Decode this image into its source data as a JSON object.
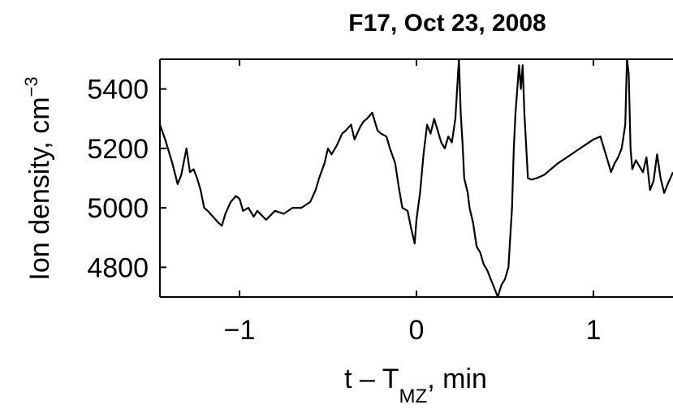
{
  "chart_data": {
    "type": "line",
    "title": "F17, Oct 23, 2008",
    "xlabel": {
      "main": "t – T",
      "subscript": "MZ",
      "suffix": ",  min"
    },
    "ylabel": {
      "main": "Ion density, cm",
      "superscript": "−3"
    },
    "xlim": [
      -1.45,
      1.45
    ],
    "ylim": [
      4700,
      5500
    ],
    "xticks": [
      {
        "value": -1,
        "label": "−1"
      },
      {
        "value": 0,
        "label": "0"
      },
      {
        "value": 1,
        "label": "1"
      }
    ],
    "yticks": [
      {
        "value": 4800,
        "label": "4800"
      },
      {
        "value": 5000,
        "label": "5000"
      },
      {
        "value": 5200,
        "label": "5200"
      },
      {
        "value": 5400,
        "label": "5400"
      }
    ],
    "grid": false,
    "series": [
      {
        "color": "#000000",
        "x": [
          -1.45,
          -1.42,
          -1.38,
          -1.35,
          -1.33,
          -1.3,
          -1.28,
          -1.26,
          -1.24,
          -1.22,
          -1.2,
          -1.18,
          -1.15,
          -1.12,
          -1.1,
          -1.08,
          -1.05,
          -1.02,
          -1.0,
          -0.98,
          -0.95,
          -0.92,
          -0.9,
          -0.85,
          -0.8,
          -0.75,
          -0.7,
          -0.65,
          -0.6,
          -0.57,
          -0.55,
          -0.52,
          -0.5,
          -0.48,
          -0.45,
          -0.42,
          -0.4,
          -0.37,
          -0.35,
          -0.32,
          -0.3,
          -0.28,
          -0.25,
          -0.22,
          -0.2,
          -0.17,
          -0.15,
          -0.12,
          -0.1,
          -0.08,
          -0.05,
          -0.03,
          -0.01,
          0.0,
          0.02,
          0.04,
          0.06,
          0.08,
          0.1,
          0.12,
          0.14,
          0.16,
          0.18,
          0.2,
          0.22,
          0.24,
          0.25,
          0.26,
          0.27,
          0.29,
          0.3,
          0.32,
          0.34,
          0.36,
          0.38,
          0.4,
          0.42,
          0.44,
          0.46,
          0.48,
          0.5,
          0.52,
          0.54,
          0.55,
          0.56,
          0.58,
          0.59,
          0.6,
          0.61,
          0.63,
          0.65,
          0.68,
          0.72,
          0.76,
          0.8,
          0.85,
          0.9,
          0.95,
          1.0,
          1.04,
          1.06,
          1.08,
          1.1,
          1.12,
          1.14,
          1.16,
          1.18,
          1.19,
          1.2,
          1.21,
          1.22,
          1.24,
          1.26,
          1.28,
          1.3,
          1.32,
          1.34,
          1.36,
          1.38,
          1.4,
          1.42,
          1.45
        ],
        "y": [
          5280,
          5230,
          5150,
          5080,
          5110,
          5200,
          5120,
          5130,
          5100,
          5060,
          5000,
          4990,
          4970,
          4950,
          4940,
          4980,
          5020,
          5040,
          5030,
          4990,
          5000,
          4970,
          4990,
          4960,
          4990,
          4980,
          5000,
          5000,
          5020,
          5060,
          5100,
          5150,
          5200,
          5180,
          5210,
          5250,
          5260,
          5280,
          5230,
          5270,
          5290,
          5300,
          5320,
          5260,
          5250,
          5240,
          5200,
          5150,
          5070,
          5000,
          4990,
          4930,
          4880,
          4960,
          5050,
          5180,
          5280,
          5250,
          5300,
          5260,
          5220,
          5200,
          5240,
          5220,
          5300,
          5500,
          5320,
          5220,
          5100,
          5050,
          5000,
          4950,
          4870,
          4850,
          4810,
          4790,
          4760,
          4730,
          4700,
          4740,
          4760,
          4800,
          5000,
          5200,
          5320,
          5480,
          5400,
          5480,
          5320,
          5100,
          5095,
          5100,
          5110,
          5130,
          5150,
          5170,
          5190,
          5210,
          5230,
          5240,
          5200,
          5160,
          5120,
          5150,
          5170,
          5200,
          5280,
          5500,
          5450,
          5200,
          5130,
          5160,
          5140,
          5120,
          5170,
          5060,
          5090,
          5180,
          5100,
          5050,
          5080,
          5120
        ]
      }
    ]
  }
}
